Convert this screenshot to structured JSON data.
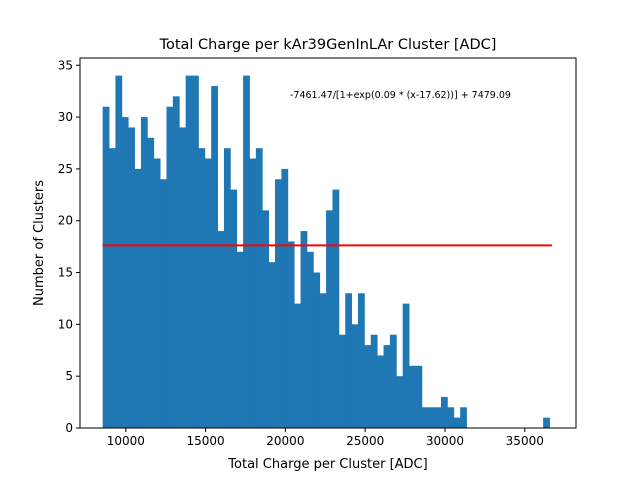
{
  "chart_data": {
    "type": "bar",
    "title": "Total Charge per kAr39GenInLAr Cluster [ADC]",
    "xlabel": "Total Charge per Cluster [ADC]",
    "ylabel": "Number of Clusters",
    "annotation": "-7461.47/[1+exp(0.09 * (x-17.62))] + 7479.09",
    "xlim": [
      7130,
      38210
    ],
    "ylim": [
      0,
      35.7
    ],
    "xticks": [
      10000,
      15000,
      20000,
      25000,
      30000,
      35000
    ],
    "yticks": [
      0,
      5,
      10,
      15,
      20,
      25,
      30,
      35
    ],
    "bin_start": 8550,
    "bin_width": 400,
    "values": [
      31,
      27,
      34,
      30,
      29,
      25,
      30,
      28,
      26,
      24,
      31,
      32,
      29,
      34,
      34,
      27,
      26,
      33,
      19,
      27,
      23,
      17,
      34,
      26,
      27,
      21,
      16,
      24,
      25,
      18,
      12,
      19,
      17,
      15,
      13,
      21,
      23,
      9,
      13,
      10,
      13,
      8,
      9,
      7,
      8,
      9,
      5,
      12,
      6,
      6,
      2,
      2,
      2,
      3,
      2,
      1,
      2,
      0,
      0,
      0,
      0,
      0,
      0,
      0,
      0,
      0,
      0,
      0,
      0,
      1
    ],
    "bar_color": "#1f77b4",
    "fit_line": {
      "x": [
        8550,
        36700
      ],
      "y": [
        17.62,
        17.62
      ],
      "color": "#ff0000"
    },
    "grid": false
  }
}
